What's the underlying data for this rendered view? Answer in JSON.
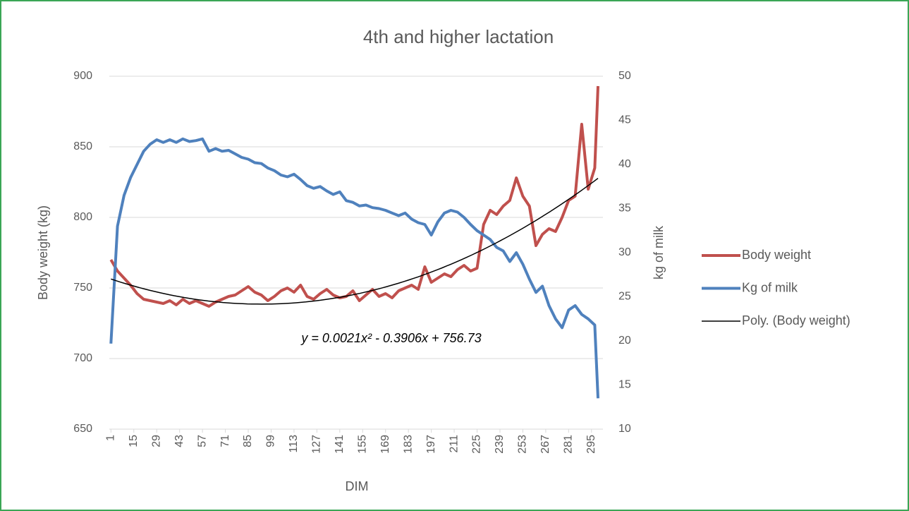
{
  "chart_data": {
    "type": "line",
    "title": "4th and higher lactation",
    "xlabel": "DIM",
    "ylabel": "Body weight (kg)",
    "y2label": "kg of milk",
    "x": [
      1,
      5,
      9,
      13,
      17,
      21,
      25,
      29,
      33,
      37,
      41,
      45,
      49,
      53,
      57,
      61,
      65,
      69,
      73,
      77,
      81,
      85,
      89,
      93,
      97,
      101,
      105,
      109,
      113,
      117,
      121,
      125,
      129,
      133,
      137,
      141,
      145,
      149,
      153,
      157,
      161,
      165,
      169,
      173,
      177,
      181,
      185,
      189,
      193,
      197,
      201,
      205,
      209,
      213,
      217,
      221,
      225,
      229,
      233,
      237,
      241,
      245,
      249,
      253,
      257,
      261,
      265,
      269,
      273,
      277,
      281,
      285,
      289,
      293,
      297,
      299
    ],
    "xlim": [
      0,
      302
    ],
    "xticks": [
      1,
      15,
      29,
      43,
      57,
      71,
      85,
      99,
      113,
      127,
      141,
      155,
      169,
      183,
      197,
      211,
      225,
      239,
      253,
      267,
      281,
      295
    ],
    "ylim": [
      650,
      900
    ],
    "yticks": [
      650,
      700,
      750,
      800,
      850,
      900
    ],
    "y2lim": [
      10,
      50
    ],
    "y2ticks": [
      10,
      15,
      20,
      25,
      30,
      35,
      40,
      45,
      50
    ],
    "grid": true,
    "legend": "right",
    "series": [
      {
        "name": "Body weight",
        "color": "#c0504d",
        "values": [
          770,
          762,
          757,
          752,
          746,
          742,
          741,
          740,
          739,
          741,
          738,
          742,
          739,
          741,
          739,
          737,
          740,
          742,
          744,
          745,
          748,
          751,
          747,
          745,
          741,
          744,
          748,
          750,
          747,
          752,
          744,
          742,
          746,
          749,
          745,
          743,
          744,
          748,
          741,
          745,
          749,
          744,
          746,
          743,
          748,
          750,
          752,
          749,
          765,
          754,
          757,
          760,
          758,
          763,
          766,
          762,
          764,
          795,
          805,
          802,
          808,
          812,
          828,
          815,
          808,
          780,
          788,
          792,
          790,
          800,
          812,
          815,
          866,
          820,
          835,
          893
        ]
      },
      {
        "name": "Kg of milk",
        "color": "#4f81bd",
        "axis": "y2",
        "values": [
          19.7,
          33,
          36.5,
          38.5,
          40,
          41.5,
          42.3,
          42.8,
          42.5,
          42.8,
          42.5,
          42.9,
          42.6,
          42.7,
          42.9,
          41.5,
          41.8,
          41.5,
          41.6,
          41.2,
          40.8,
          40.6,
          40.2,
          40.1,
          39.6,
          39.3,
          38.8,
          38.6,
          38.9,
          38.3,
          37.6,
          37.3,
          37.5,
          37.0,
          36.6,
          36.9,
          35.9,
          35.7,
          35.3,
          35.4,
          35.1,
          35.0,
          34.8,
          34.5,
          34.2,
          34.5,
          33.8,
          33.4,
          33.2,
          32.0,
          33.5,
          34.5,
          34.8,
          34.6,
          34.0,
          33.2,
          32.5,
          32.0,
          31.5,
          30.6,
          30.2,
          29.0,
          30.0,
          28.7,
          27.0,
          25.5,
          26.2,
          24.0,
          22.5,
          21.5,
          23.5,
          24.0,
          23.0,
          22.5,
          21.8,
          13.5
        ]
      }
    ],
    "trendline": {
      "name": "Poly. (Body weight)",
      "color": "#000000",
      "coefficients": [
        0.0021,
        -0.3906,
        756.73
      ],
      "equation": "y = 0.0021x² - 0.3906x + 756.73"
    }
  }
}
